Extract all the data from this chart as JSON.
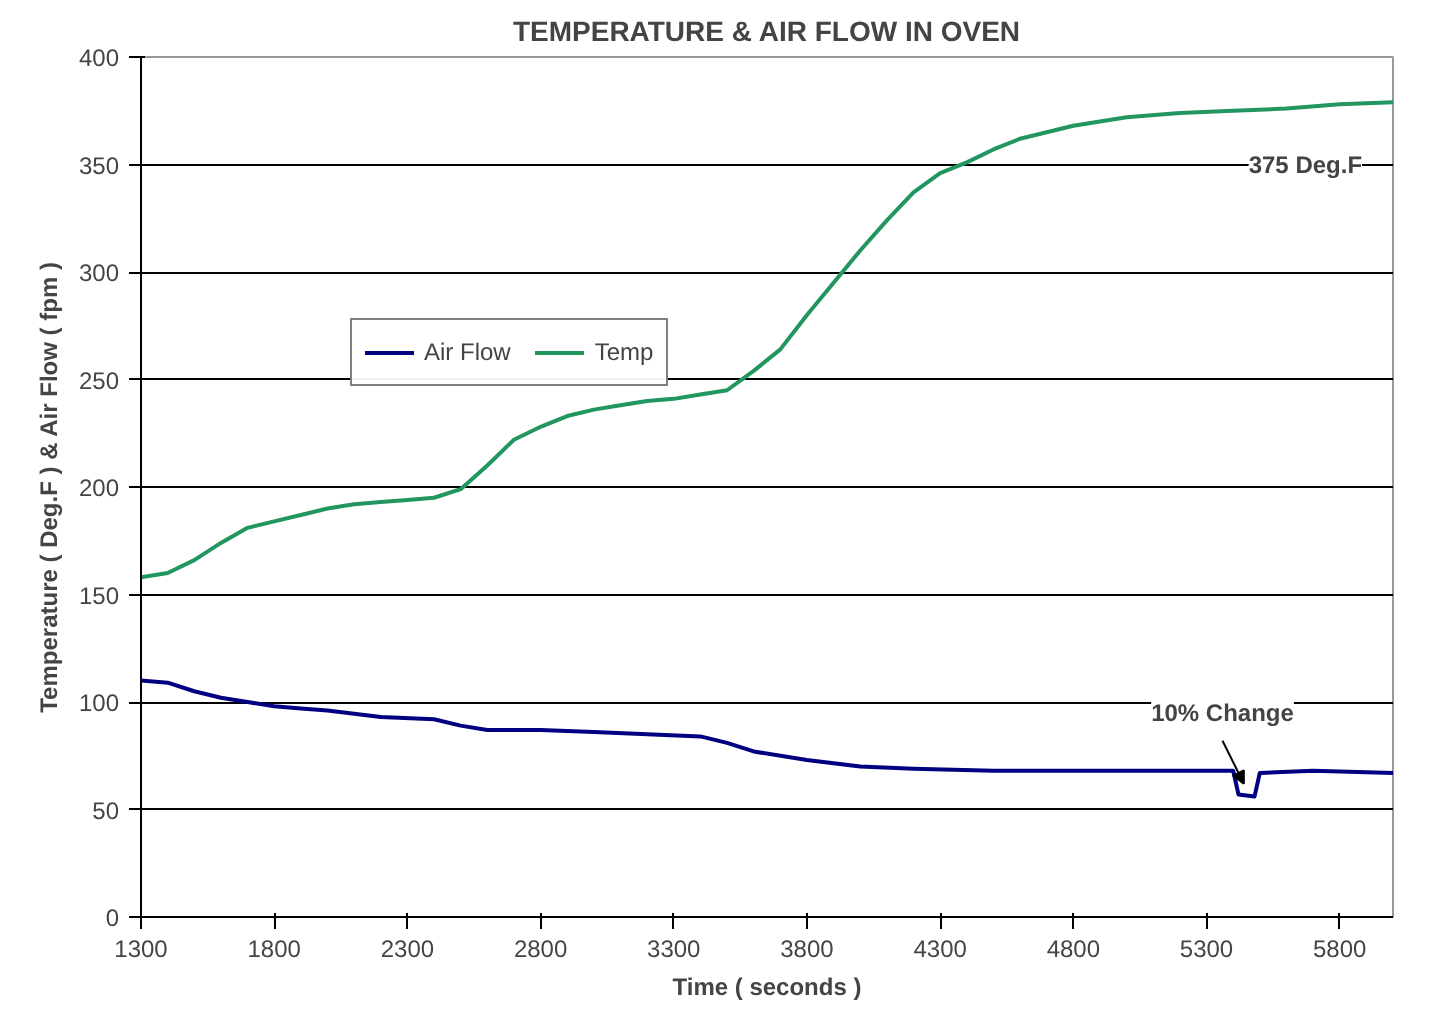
{
  "chart_data": {
    "type": "line",
    "title": "TEMPERATURE & AIR FLOW IN OVEN",
    "xlabel": "Time ( seconds )",
    "ylabel": "Temperature ( Deg.F ) & Air Flow ( fpm )",
    "xlim": [
      1300,
      6000
    ],
    "xticks": [
      1300,
      1800,
      2300,
      2800,
      3300,
      3800,
      4300,
      4800,
      5300,
      5800
    ],
    "ylim": [
      0,
      400
    ],
    "yticks": [
      0,
      50,
      100,
      150,
      200,
      250,
      300,
      350,
      400
    ],
    "grid": "y",
    "legend": "top left",
    "line_style": "solid",
    "marker": "none",
    "annotations": [
      "375 Deg.F",
      {
        "text": "10% Change",
        "x": 5440,
        "y": 57
      }
    ],
    "series": [
      {
        "name": "Air Flow",
        "color": "#000080",
        "x": [
          1300,
          1400,
          1500,
          1600,
          1700,
          1800,
          1900,
          2000,
          2200,
          2400,
          2500,
          2600,
          2800,
          3000,
          3200,
          3400,
          3500,
          3600,
          3800,
          4000,
          4200,
          4500,
          4800,
          5100,
          5400,
          5420,
          5480,
          5500,
          5700,
          6000
        ],
        "values": [
          110,
          109,
          105,
          102,
          100,
          98,
          97,
          96,
          93,
          92,
          89,
          87,
          87,
          86,
          85,
          84,
          81,
          77,
          73,
          70,
          69,
          68,
          68,
          68,
          68,
          57,
          56,
          67,
          68,
          67
        ]
      },
      {
        "name": "Temp",
        "color": "#21965f",
        "x": [
          1300,
          1400,
          1500,
          1600,
          1700,
          1800,
          1900,
          2000,
          2100,
          2200,
          2300,
          2400,
          2500,
          2600,
          2700,
          2800,
          2900,
          3000,
          3100,
          3200,
          3300,
          3400,
          3500,
          3600,
          3700,
          3800,
          3900,
          4000,
          4100,
          4200,
          4300,
          4400,
          4500,
          4600,
          4800,
          5000,
          5200,
          5400,
          5600,
          5800,
          6000
        ],
        "values": [
          158,
          160,
          166,
          174,
          181,
          184,
          187,
          190,
          192,
          193,
          194,
          195,
          199,
          210,
          222,
          228,
          233,
          236,
          238,
          240,
          241,
          243,
          245,
          254,
          264,
          280,
          295,
          310,
          324,
          337,
          346,
          351,
          357,
          362,
          368,
          372,
          374,
          375,
          376,
          378,
          379
        ]
      }
    ]
  }
}
